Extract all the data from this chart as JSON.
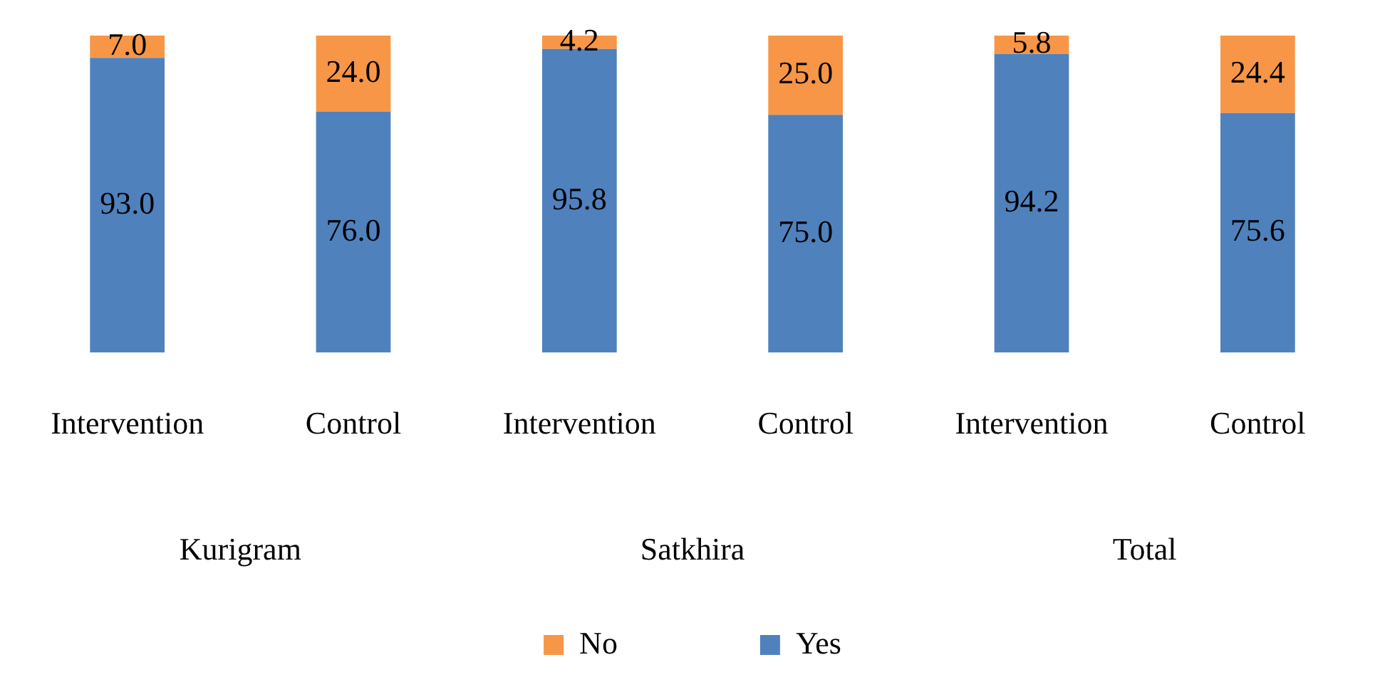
{
  "chart_data": {
    "type": "bar",
    "stacked": true,
    "categories": [
      "Intervention",
      "Control",
      "Intervention",
      "Control",
      "Intervention",
      "Control"
    ],
    "series": [
      {
        "name": "Yes",
        "color": "#4f81bd",
        "values": [
          93.0,
          76.0,
          95.8,
          75.0,
          94.2,
          75.6
        ],
        "value_labels": [
          "93.0",
          "76.0",
          "95.8",
          "75.0",
          "94.2",
          "75.6"
        ]
      },
      {
        "name": "No",
        "color": "#f79646",
        "values": [
          7.0,
          24.0,
          4.2,
          25.0,
          5.8,
          24.4
        ],
        "value_labels": [
          "7.0",
          "24.0",
          "4.2",
          "25.0",
          "5.8",
          "24.4"
        ]
      }
    ],
    "annotations": [
      "Kurigram",
      "Satkhira",
      "Total"
    ],
    "legend": "bottom",
    "grid": false
  }
}
